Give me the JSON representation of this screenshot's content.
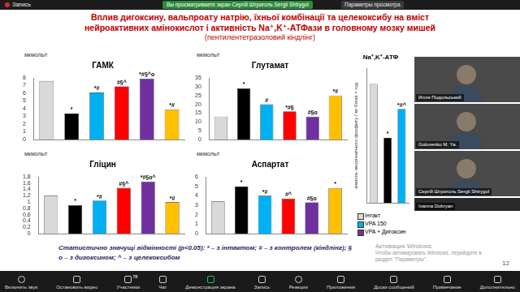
{
  "zoom": {
    "top_bar": {
      "recording": "Запись",
      "banner": "Вы просматриваете экран Сергій Штриголь Sergii Shtrygol",
      "view_options": "Параметры просмотра"
    },
    "videos": [
      "Илля Подольський",
      "Golovenko M. Ya.",
      "Сергій Штриголь Sergii Shtrygol",
      "Ivanna Dobryan"
    ],
    "watermark": [
      "Активация Windows",
      "Чтобы активировать Windows, перейдите в",
      "раздел \"Параметры\"."
    ],
    "toolbar": [
      {
        "label": "Включить звук"
      },
      {
        "label": "Остановить видео"
      },
      {
        "label": "Участники",
        "badge": 78
      },
      {
        "label": "Чат"
      },
      {
        "label": "Демонстрация экрана"
      },
      {
        "label": "Запись"
      },
      {
        "label": "Реакции"
      },
      {
        "label": "Приложения"
      },
      {
        "label": "Доски сообщений"
      },
      {
        "label": "Примечание"
      },
      {
        "label": "Дополнительно"
      }
    ]
  },
  "slide": {
    "title_lines": [
      "Вплив дигоксину, вальпроату натрію, їхньої комбінації та целекоксибу на вміст",
      "нейроактивних амінокислот і активність Na⁺,K⁺-АТФази в головному мозку мишей"
    ],
    "subtitle": "(пентилентетразоловий кіндлінг)",
    "footnote_lines": [
      "Статистично значущі відмінності (p<0.05): * – з інтактом; # – з контролем (кіндлінг); §",
      "о – з дигоксином; ^ – з целекоксибом"
    ],
    "legend_items": [
      {
        "label": "Інтакт",
        "color": "#d9d9d9"
      },
      {
        "label": "VPA 150",
        "color": "#00b0f0"
      },
      {
        "label": "VPA + Дигоксин",
        "color": "#7030a0"
      }
    ],
    "page": 12
  },
  "chart_data": [
    {
      "type": "bar",
      "title": "ГАМК",
      "y_label": "мкмоль/г",
      "categories": [
        null,
        null,
        null,
        null,
        null,
        null
      ],
      "values": [
        7.6,
        3.4,
        6.1,
        6.9,
        7.9,
        3.9
      ],
      "colors": [
        "#d9d9d9",
        "#000000",
        "#00b0f0",
        "#ff0000",
        "#7030a0",
        "#ffc000"
      ],
      "annotations": [
        null,
        "*",
        "*#",
        "#§^",
        "*#§^о",
        "*#"
      ],
      "ylim": [
        0,
        8
      ],
      "yticks": [
        0,
        1,
        2,
        3,
        4,
        5,
        6,
        7,
        8
      ],
      "grid": false
    },
    {
      "type": "bar",
      "title": "Глутамат",
      "y_label": "мкмоль/г",
      "categories": [
        null,
        null,
        null,
        null,
        null,
        null
      ],
      "values": [
        13,
        29,
        20,
        16,
        13,
        25
      ],
      "colors": [
        "#d9d9d9",
        "#000000",
        "#00b0f0",
        "#ff0000",
        "#7030a0",
        "#ffc000"
      ],
      "annotations": [
        null,
        "*",
        "#",
        "*#§",
        "#§о",
        "*#"
      ],
      "ylim": [
        0,
        35
      ],
      "yticks": [
        0,
        5,
        10,
        15,
        20,
        25,
        30,
        35
      ],
      "grid": false
    },
    {
      "type": "bar",
      "title": "Гліцин",
      "y_label": "мкмоль/г",
      "categories": [
        null,
        null,
        null,
        null,
        null,
        null
      ],
      "values": [
        1.2,
        0.9,
        1.05,
        1.45,
        1.65,
        1.0
      ],
      "colors": [
        "#d9d9d9",
        "#000000",
        "#00b0f0",
        "#ff0000",
        "#7030a0",
        "#ffc000"
      ],
      "annotations": [
        null,
        "*",
        "*#",
        "#§^",
        "*#§о^",
        "*#"
      ],
      "ylim": [
        0,
        1.8
      ],
      "yticks": [
        0,
        {
          "value": 0.2,
          "label": "0,2"
        },
        {
          "value": 0.4,
          "label": "0,4"
        },
        {
          "value": 0.6,
          "label": "0,6"
        },
        {
          "value": 0.8,
          "label": "0,8"
        },
        1,
        {
          "value": 1.2,
          "label": "1,2"
        },
        {
          "value": 1.4,
          "label": "1,4"
        },
        {
          "value": 1.6,
          "label": "1,6"
        },
        {
          "value": 1.8,
          "label": "1,8"
        }
      ],
      "grid": false
    },
    {
      "type": "bar",
      "title": "Аспартат",
      "y_label": "мкмоль/г",
      "categories": [
        null,
        null,
        null,
        null,
        null,
        null
      ],
      "values": [
        3.4,
        5.0,
        4.0,
        3.7,
        3.3,
        4.8
      ],
      "colors": [
        "#d9d9d9",
        "#000000",
        "#00b0f0",
        "#ff0000",
        "#7030a0",
        "#ffc000"
      ],
      "annotations": [
        null,
        "*",
        "*#",
        "#^",
        "#§о",
        "*"
      ],
      "ylim": [
        0,
        6
      ],
      "yticks": [
        0,
        1,
        2,
        3,
        4,
        5,
        6
      ],
      "grid": false
    },
    {
      "type": "bar",
      "title": "Na⁺,K⁺-АТФ",
      "y_label": "мкмоль неорганічного фосфату / мг білка × год",
      "categories": [
        null,
        null,
        null
      ],
      "values": [
        31,
        17,
        24.5
      ],
      "colors": [
        "#d9d9d9",
        "#000000",
        "#00b0f0"
      ],
      "annotations": [
        null,
        "*",
        "*#^"
      ],
      "ylim": [
        0,
        35
      ],
      "tick_labels": false,
      "grid": false
    }
  ]
}
